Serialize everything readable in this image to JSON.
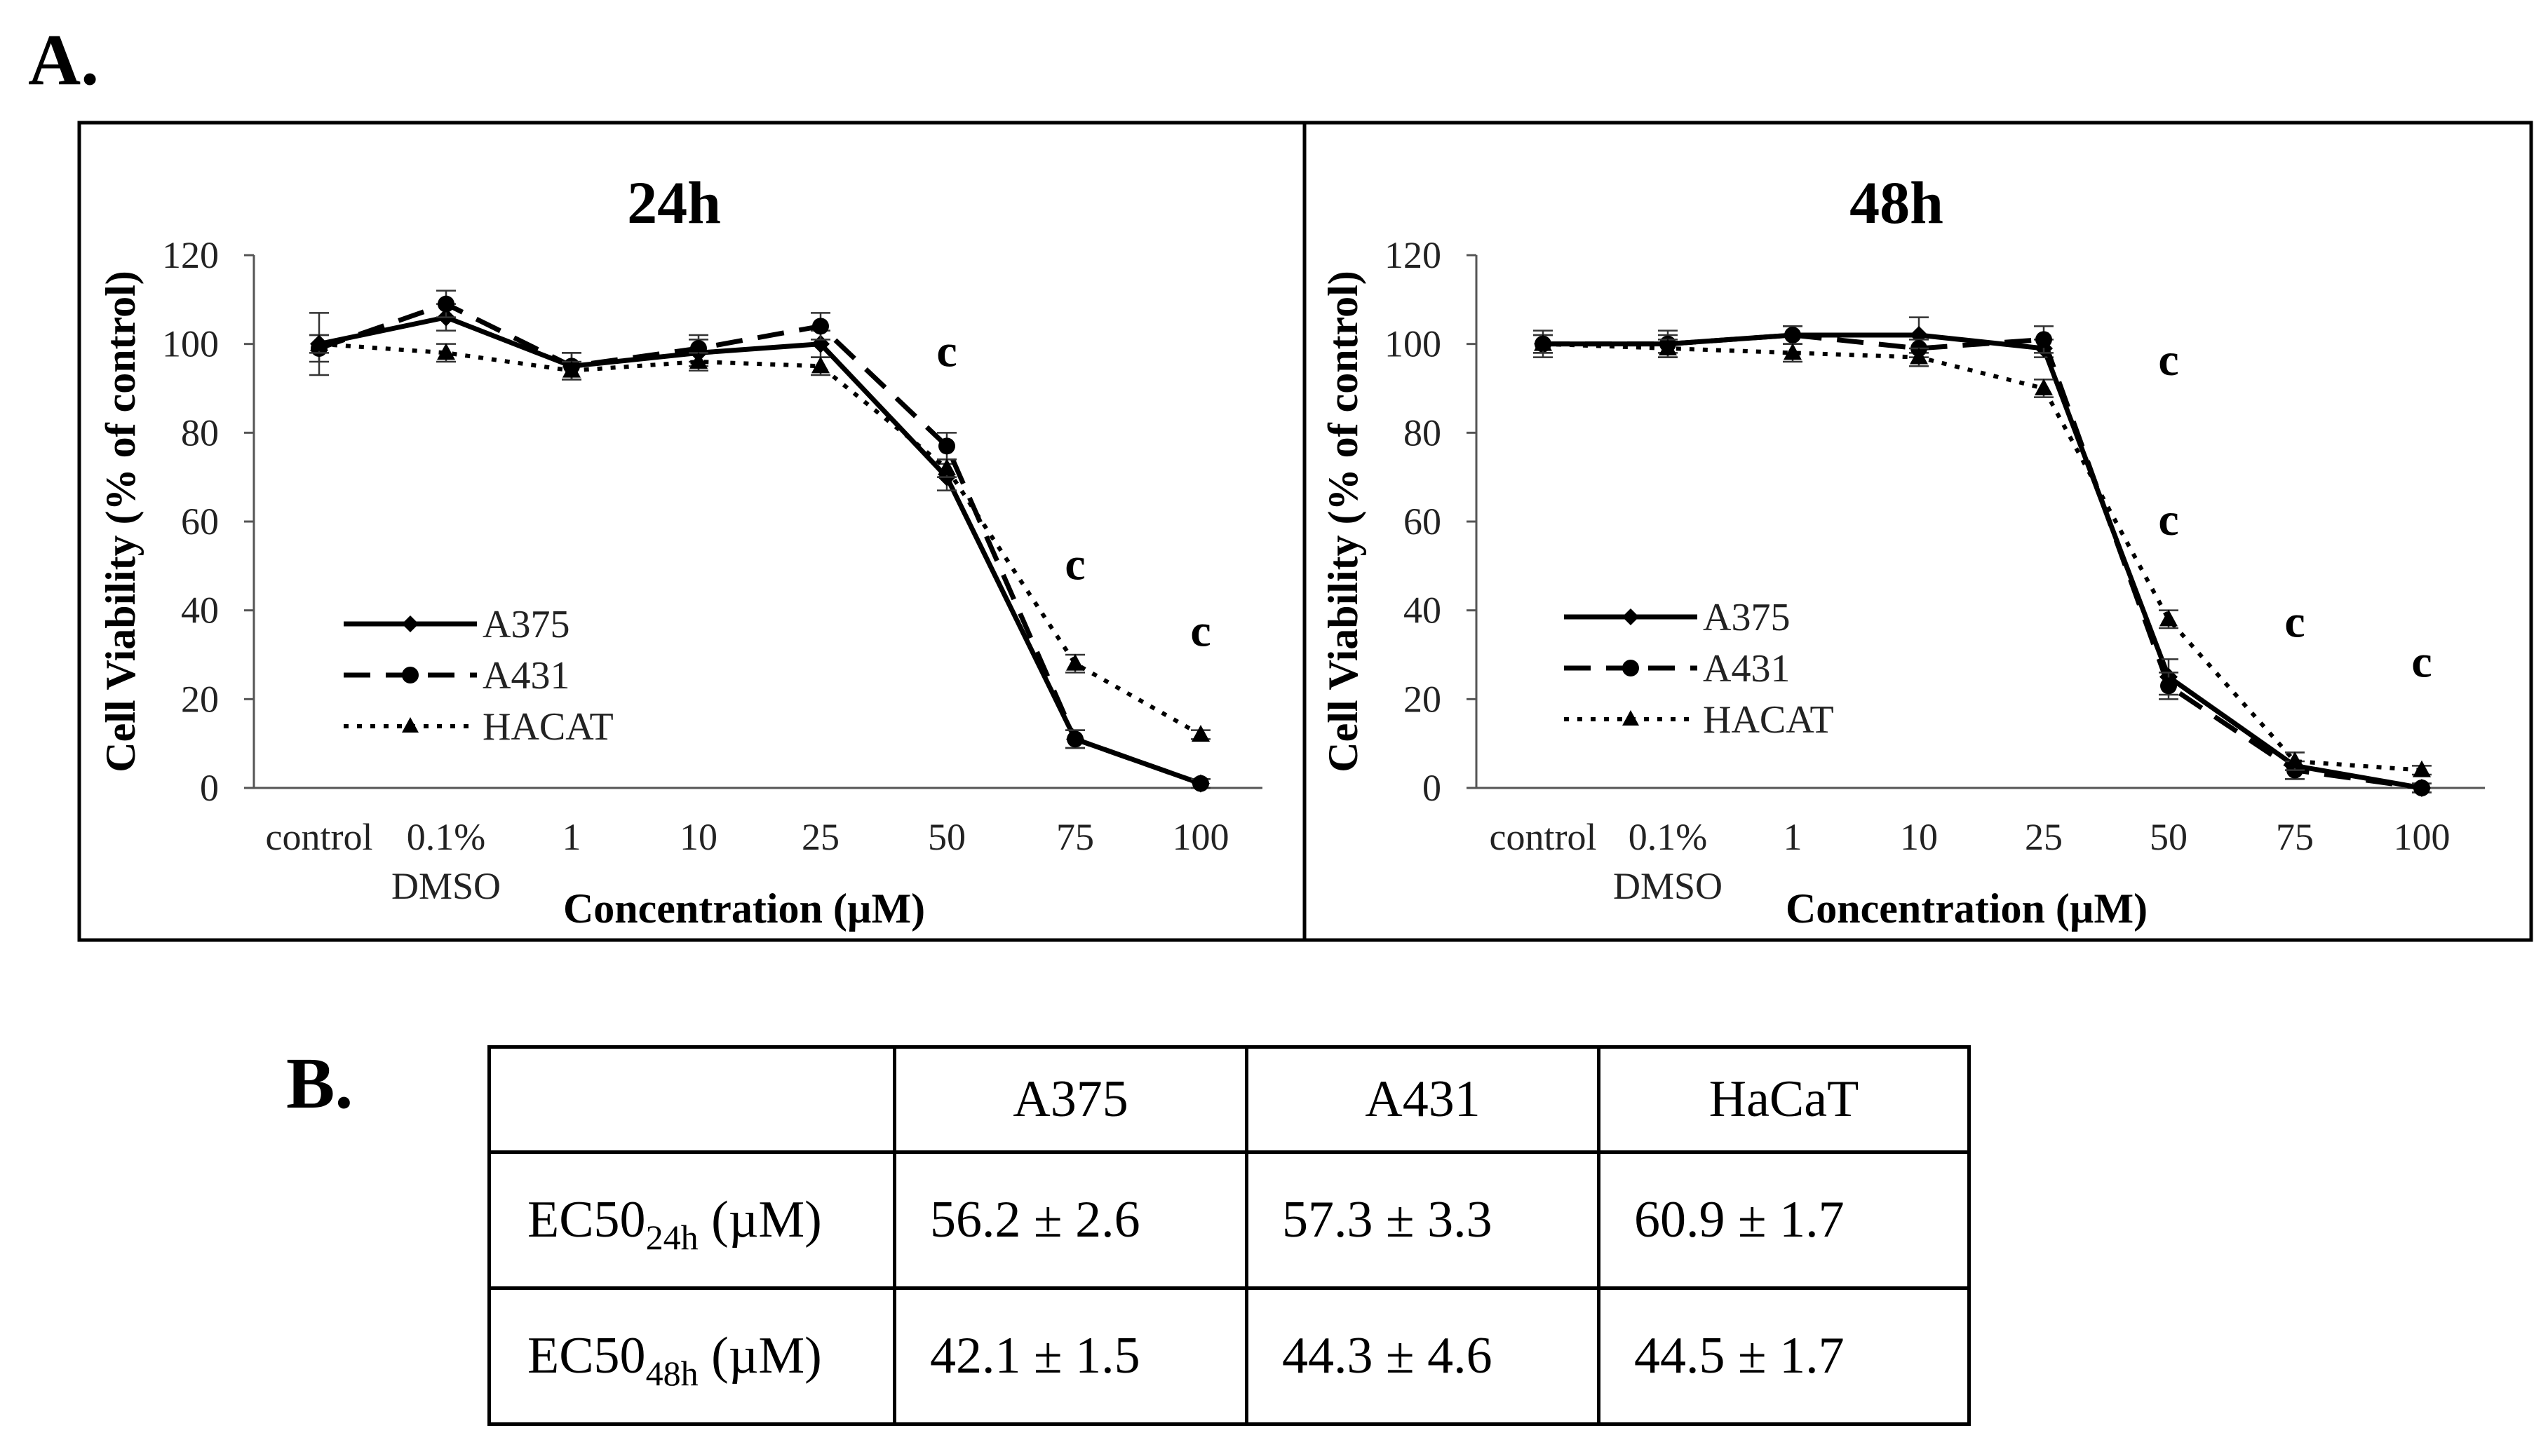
{
  "panel_a_letter": "A.",
  "panel_b_letter": "B.",
  "chart_data": [
    {
      "type": "line",
      "title": "24h",
      "xlabel": "Concentration (µM)",
      "ylabel": "Cell Viability  (% of control)",
      "categories": [
        "control",
        "0.1%\nDMSO",
        "1",
        "10",
        "25",
        "50",
        "75",
        "100"
      ],
      "ylim": [
        0,
        120
      ],
      "yticks": [
        0,
        20,
        40,
        60,
        80,
        100,
        120
      ],
      "legend_position": "bottom-left",
      "series": [
        {
          "name": "A375",
          "style": "solid",
          "marker": "diamond",
          "values": [
            100,
            106,
            95,
            98,
            100,
            70,
            11,
            1
          ],
          "errors": [
            7,
            3,
            3,
            3,
            3,
            3,
            2,
            1
          ]
        },
        {
          "name": "A431",
          "style": "dashed",
          "marker": "circle",
          "values": [
            99,
            109,
            95,
            99,
            104,
            77,
            11,
            1
          ],
          "errors": [
            3,
            3,
            3,
            3,
            3,
            3,
            2,
            1
          ]
        },
        {
          "name": "HACAT",
          "style": "dotted",
          "marker": "triangle",
          "values": [
            100,
            98,
            94,
            96,
            95,
            72,
            28,
            12
          ],
          "errors": [
            2,
            2,
            2,
            2,
            2,
            2,
            2,
            1
          ]
        }
      ],
      "annotations": [
        {
          "category": "50",
          "y": 95,
          "text": "c"
        },
        {
          "category": "75",
          "y": 47,
          "text": "c"
        },
        {
          "category": "100",
          "y": 32,
          "text": "c"
        }
      ]
    },
    {
      "type": "line",
      "title": "48h",
      "xlabel": "Concentration (µM)",
      "ylabel": "Cell Viability  (% of control)",
      "categories": [
        "control",
        "0.1%\nDMSO",
        "1",
        "10",
        "25",
        "50",
        "75",
        "100"
      ],
      "ylim": [
        0,
        120
      ],
      "yticks": [
        0,
        20,
        40,
        60,
        80,
        100,
        120
      ],
      "legend_position": "bottom-left",
      "series": [
        {
          "name": "A375",
          "style": "solid",
          "marker": "diamond",
          "values": [
            100,
            100,
            102,
            102,
            99,
            25,
            5,
            0
          ],
          "errors": [
            3,
            3,
            2,
            4,
            2,
            4,
            3,
            1
          ]
        },
        {
          "name": "A431",
          "style": "dashed",
          "marker": "circle",
          "values": [
            100,
            100,
            102,
            99,
            101,
            23,
            4,
            0
          ],
          "errors": [
            2,
            2,
            2,
            2,
            3,
            3,
            2,
            1
          ]
        },
        {
          "name": "HACAT",
          "style": "dotted",
          "marker": "triangle",
          "values": [
            100,
            99,
            98,
            97,
            90,
            38,
            6,
            4
          ],
          "errors": [
            2,
            2,
            2,
            2,
            2,
            2,
            2,
            1
          ]
        }
      ],
      "annotations": [
        {
          "category": "50",
          "y": 93,
          "text": "c"
        },
        {
          "category": "50",
          "y": 57,
          "text": "c"
        },
        {
          "category": "75",
          "y": 34,
          "text": "c"
        },
        {
          "category": "100",
          "y": 25,
          "text": "c"
        }
      ]
    }
  ],
  "table": {
    "headers": [
      "",
      "A375",
      "A431",
      "HaCaT"
    ],
    "rows": [
      {
        "label_main": "EC50",
        "label_sub": "24h",
        "label_unit": " (µM)",
        "cells": [
          "56.2 ± 2.6",
          "57.3 ± 3.3",
          "60.9 ± 1.7"
        ]
      },
      {
        "label_main": "EC50",
        "label_sub": "48h",
        "label_unit": " (µM)",
        "cells": [
          "42.1 ± 1.5",
          "44.3 ± 4.6",
          "44.5 ± 1.7"
        ]
      }
    ]
  }
}
